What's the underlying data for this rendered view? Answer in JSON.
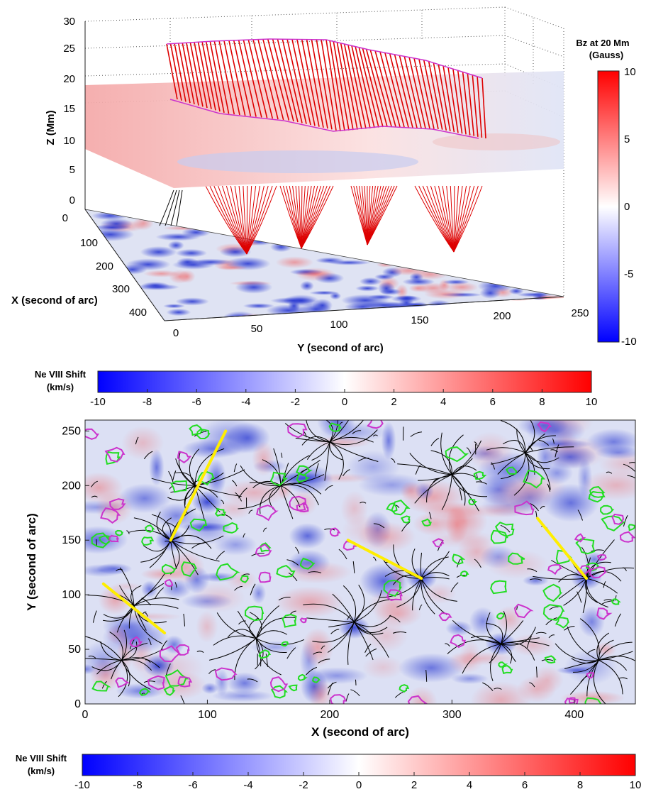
{
  "chart_data": [
    {
      "type": "heatmap",
      "description_3d": "3D magnetic field lines",
      "x_axis": {
        "label": "X (second of arc)",
        "ticks": [
          "0",
          "100",
          "200",
          "300",
          "400"
        ]
      },
      "y_axis": {
        "label": "Y (second of arc)",
        "ticks": [
          "0",
          "50",
          "100",
          "150",
          "200",
          "250"
        ]
      },
      "z_axis": {
        "label": "Z (Mm)",
        "ticks": [
          "0",
          "5",
          "10",
          "15",
          "20",
          "25",
          "30"
        ]
      },
      "colorbar": {
        "title_line1": "Bz at 20 Mm",
        "title_line2": "(Gauss)",
        "min": -10,
        "max": 10,
        "ticks": [
          "10",
          "5",
          "0",
          "-5",
          "-10"
        ],
        "colors": {
          "neg": "#0000ff",
          "mid": "#ffffff",
          "pos": "#ff0000"
        }
      },
      "field_line_color": "#dd0000",
      "boundary_color": "#cc33cc"
    },
    {
      "type": "heatmap",
      "colorbar": {
        "title_line1": "Ne VIII Shift",
        "title_line2": "(km/s)",
        "min": -10,
        "max": 10,
        "ticks": [
          "-10",
          "-8",
          "-6",
          "-4",
          "-2",
          "0",
          "2",
          "4",
          "6",
          "8",
          "10"
        ]
      },
      "x_axis": {
        "label": "X (second of arc)",
        "range": [
          0,
          450
        ],
        "ticks": [
          0,
          100,
          200,
          300,
          400
        ]
      },
      "y_axis": {
        "label": "Y (second of arc)",
        "range": [
          0,
          260
        ],
        "ticks": [
          0,
          50,
          100,
          150,
          200,
          250
        ]
      },
      "contour_colors": {
        "green": "#22dd22",
        "magenta": "#cc33cc"
      },
      "field_line_color": "#000000",
      "yellow_lines": [
        {
          "points": [
            [
              70,
              150
            ],
            [
              115,
              250
            ]
          ]
        },
        {
          "points": [
            [
              15,
              110
            ],
            [
              65,
              65
            ]
          ]
        },
        {
          "points": [
            [
              215,
              150
            ],
            [
              275,
              115
            ]
          ]
        },
        {
          "points": [
            [
              370,
              170
            ],
            [
              410,
              115
            ]
          ]
        }
      ],
      "yellow_color": "#ffee00",
      "colorbar_bottom": {
        "title_line1": "Ne VIII Shift",
        "title_line2": "(km/s)",
        "ticks": [
          "-10",
          "-8",
          "-6",
          "-4",
          "-2",
          "0",
          "2",
          "4",
          "6",
          "8",
          "10"
        ]
      }
    }
  ]
}
